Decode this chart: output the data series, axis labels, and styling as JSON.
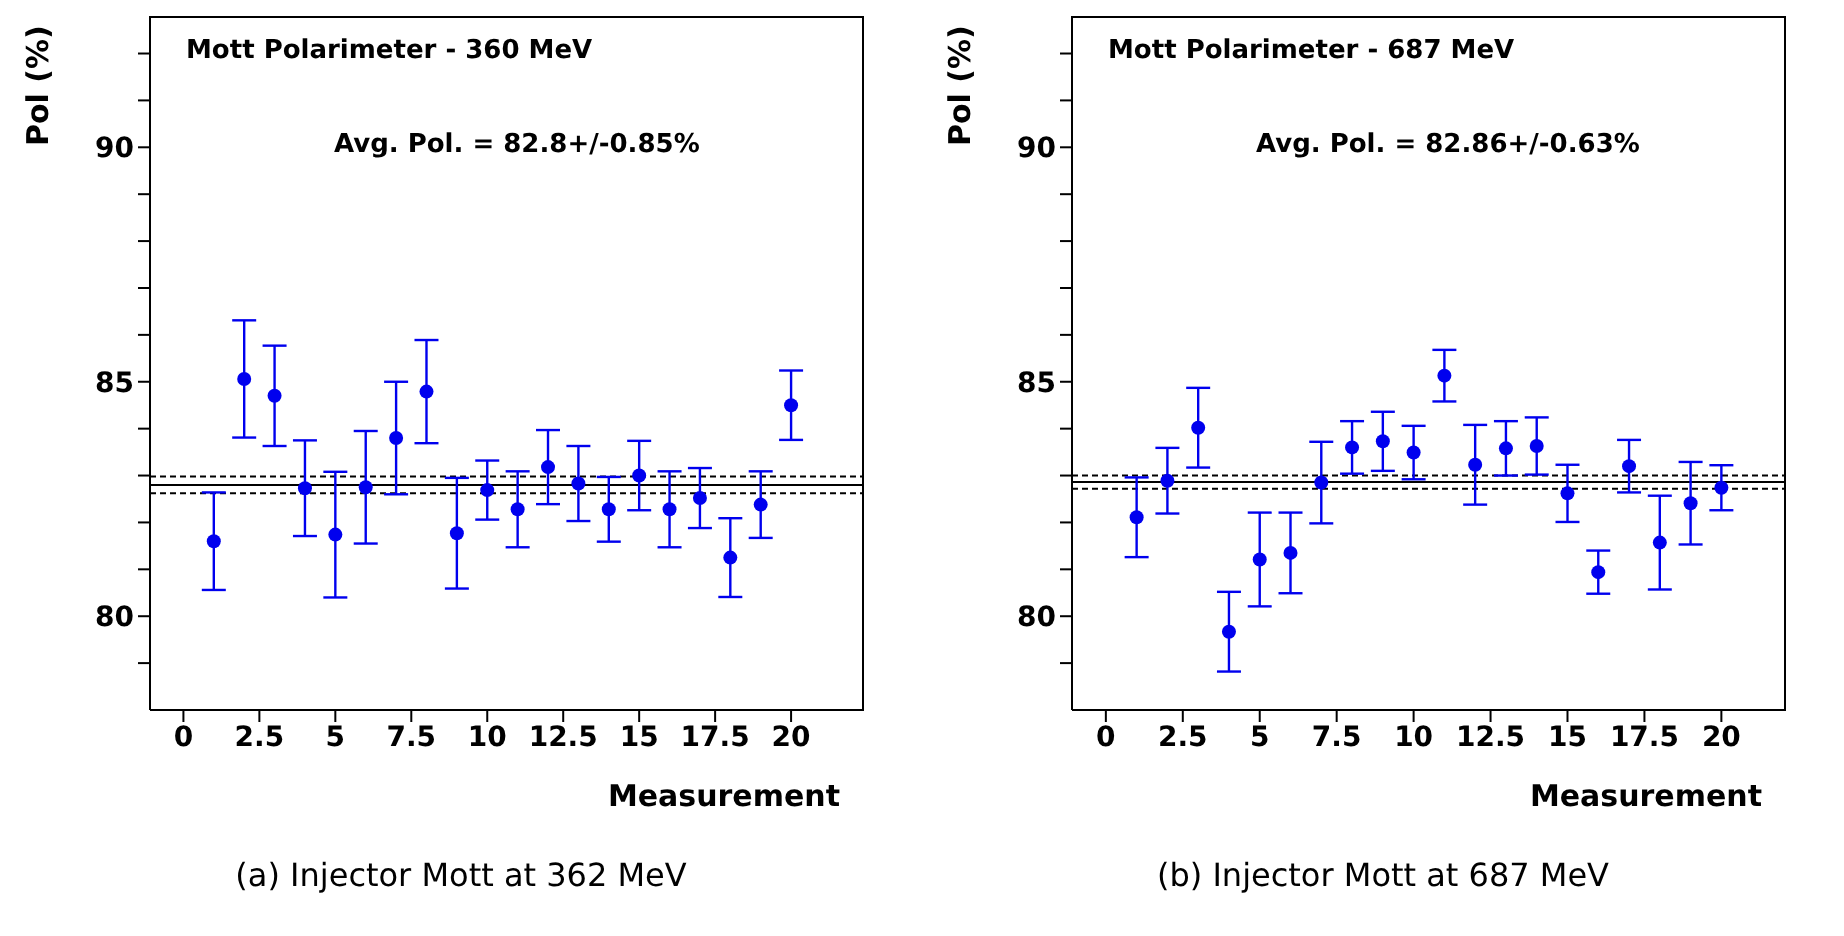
{
  "chart_data": [
    {
      "type": "scatter",
      "title": "Mott Polarimeter - 360 MeV",
      "xlabel": "Measurement",
      "ylabel": "Pol (%)",
      "annotations": [
        "Avg. Pol. = 82.8+/-0.85%",
        "(a) Injector Mott at 362 MeV"
      ],
      "x": [
        1,
        2,
        3,
        4,
        5,
        6,
        7,
        8,
        9,
        10,
        11,
        12,
        13,
        14,
        15,
        16,
        17,
        18,
        19,
        20
      ],
      "series": [
        {
          "color": "#0000ee",
          "values": [
            81.6,
            85.06,
            84.7,
            82.73,
            81.74,
            82.75,
            83.8,
            84.79,
            81.77,
            82.69,
            82.28,
            83.18,
            82.83,
            82.28,
            83.0,
            82.28,
            82.52,
            81.25,
            82.38,
            84.5
          ],
          "errors": [
            1.04,
            1.25,
            1.07,
            1.02,
            1.34,
            1.2,
            1.2,
            1.1,
            1.18,
            0.63,
            0.81,
            0.79,
            0.8,
            0.69,
            0.74,
            0.81,
            0.64,
            0.84,
            0.71,
            0.74
          ]
        }
      ],
      "xlim": [
        -1.1,
        22.4
      ],
      "xticks": [
        0,
        2.5,
        5,
        7.5,
        10,
        12.5,
        15,
        17.5,
        20
      ],
      "ylim": [
        78,
        92.8
      ],
      "yticks": [
        {
          "value": 79,
          "label": null
        },
        80,
        {
          "value": 81,
          "label": null
        },
        {
          "value": 82,
          "label": null
        },
        {
          "value": 83,
          "label": null
        },
        {
          "value": 84,
          "label": null
        },
        85,
        {
          "value": 86,
          "label": null
        },
        {
          "value": 87,
          "label": null
        },
        {
          "value": 88,
          "label": null
        },
        {
          "value": 89,
          "label": null
        },
        90,
        {
          "value": 91,
          "label": null
        },
        {
          "value": 92,
          "label": null
        }
      ],
      "ref_lines": [
        {
          "axis": "y",
          "value": 82.8,
          "color": "#000000",
          "line_style": "solid"
        },
        {
          "axis": "y",
          "value": 82.62,
          "color": "#000000",
          "line_style": "dashed"
        },
        {
          "axis": "y",
          "value": 82.98,
          "color": "#000000",
          "line_style": "dashed"
        }
      ],
      "marker": "circle",
      "grid": false,
      "legend": false
    },
    {
      "type": "scatter",
      "title": "Mott Polarimeter - 687 MeV",
      "xlabel": "Measurement",
      "ylabel": "Pol (%)",
      "annotations": [
        "Avg. Pol. = 82.86+/-0.63%",
        "(b) Injector Mott at 687 MeV"
      ],
      "x": [
        1,
        2,
        3,
        4,
        5,
        6,
        7,
        8,
        9,
        10,
        11,
        12,
        13,
        14,
        15,
        16,
        17,
        18,
        19,
        20
      ],
      "series": [
        {
          "color": "#0000ee",
          "values": [
            82.11,
            82.89,
            84.02,
            79.67,
            81.21,
            81.35,
            82.85,
            83.6,
            83.73,
            83.49,
            85.13,
            83.23,
            83.58,
            83.63,
            82.62,
            80.94,
            83.2,
            81.57,
            82.41,
            82.74
          ],
          "errors": [
            0.85,
            0.7,
            0.85,
            0.85,
            1.0,
            0.86,
            0.87,
            0.56,
            0.63,
            0.57,
            0.55,
            0.85,
            0.58,
            0.61,
            0.61,
            0.46,
            0.56,
            1.0,
            0.88,
            0.48
          ]
        }
      ],
      "xlim": [
        -1.1,
        22.1
      ],
      "xticks": [
        0,
        2.5,
        5,
        7.5,
        10,
        12.5,
        15,
        17.5,
        20
      ],
      "ylim": [
        78,
        92.8
      ],
      "yticks": [
        {
          "value": 79,
          "label": null
        },
        80,
        {
          "value": 81,
          "label": null
        },
        {
          "value": 82,
          "label": null
        },
        {
          "value": 83,
          "label": null
        },
        {
          "value": 84,
          "label": null
        },
        85,
        {
          "value": 86,
          "label": null
        },
        {
          "value": 87,
          "label": null
        },
        {
          "value": 88,
          "label": null
        },
        {
          "value": 89,
          "label": null
        },
        90,
        {
          "value": 91,
          "label": null
        },
        {
          "value": 92,
          "label": null
        }
      ],
      "ref_lines": [
        {
          "axis": "y",
          "value": 82.86,
          "color": "#000000",
          "line_style": "solid"
        },
        {
          "axis": "y",
          "value": 82.72,
          "color": "#000000",
          "line_style": "dashed"
        },
        {
          "axis": "y",
          "value": 83.0,
          "color": "#000000",
          "line_style": "dashed"
        }
      ],
      "marker": "circle",
      "grid": false,
      "legend": false
    }
  ]
}
